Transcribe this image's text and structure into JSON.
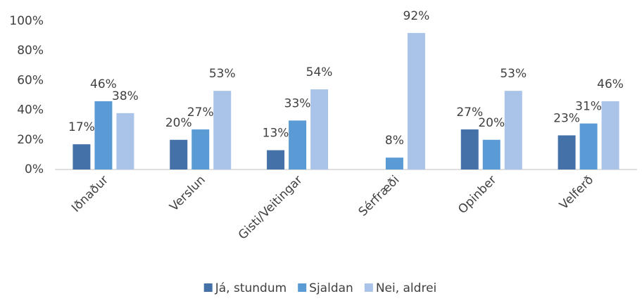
{
  "chart_data": {
    "type": "bar",
    "categories": [
      "Iðnaður",
      "Verslun",
      "Gisti/Veitingar",
      "Sérfræði",
      "Opinber",
      "Velferð"
    ],
    "series": [
      {
        "name": "Já, stundum",
        "color": "#4472a8",
        "values": [
          17,
          20,
          13,
          null,
          27,
          23
        ],
        "value_labels": [
          "17%",
          "20%",
          "13%",
          null,
          "27%",
          "23%"
        ]
      },
      {
        "name": "Sjaldan",
        "color": "#5b9bd5",
        "values": [
          46,
          27,
          33,
          8,
          20,
          31
        ],
        "value_labels": [
          "46%",
          "27%",
          "33%",
          "8%",
          "20%",
          "31%"
        ]
      },
      {
        "name": "Nei, aldrei",
        "color": "#a9c4e8",
        "values": [
          38,
          53,
          54,
          92,
          53,
          46
        ],
        "value_labels": [
          "38%",
          "53%",
          "54%",
          "92%",
          "53%",
          "46%"
        ]
      }
    ],
    "ylim": [
      0,
      100
    ],
    "yticks": [
      {
        "value": 0,
        "label": "0%"
      },
      {
        "value": 20,
        "label": "20%"
      },
      {
        "value": 40,
        "label": "40%"
      },
      {
        "value": 60,
        "label": "60%"
      },
      {
        "value": 80,
        "label": "80%"
      },
      {
        "value": 100,
        "label": "100%"
      }
    ],
    "grid": false,
    "legend": "bottom"
  }
}
